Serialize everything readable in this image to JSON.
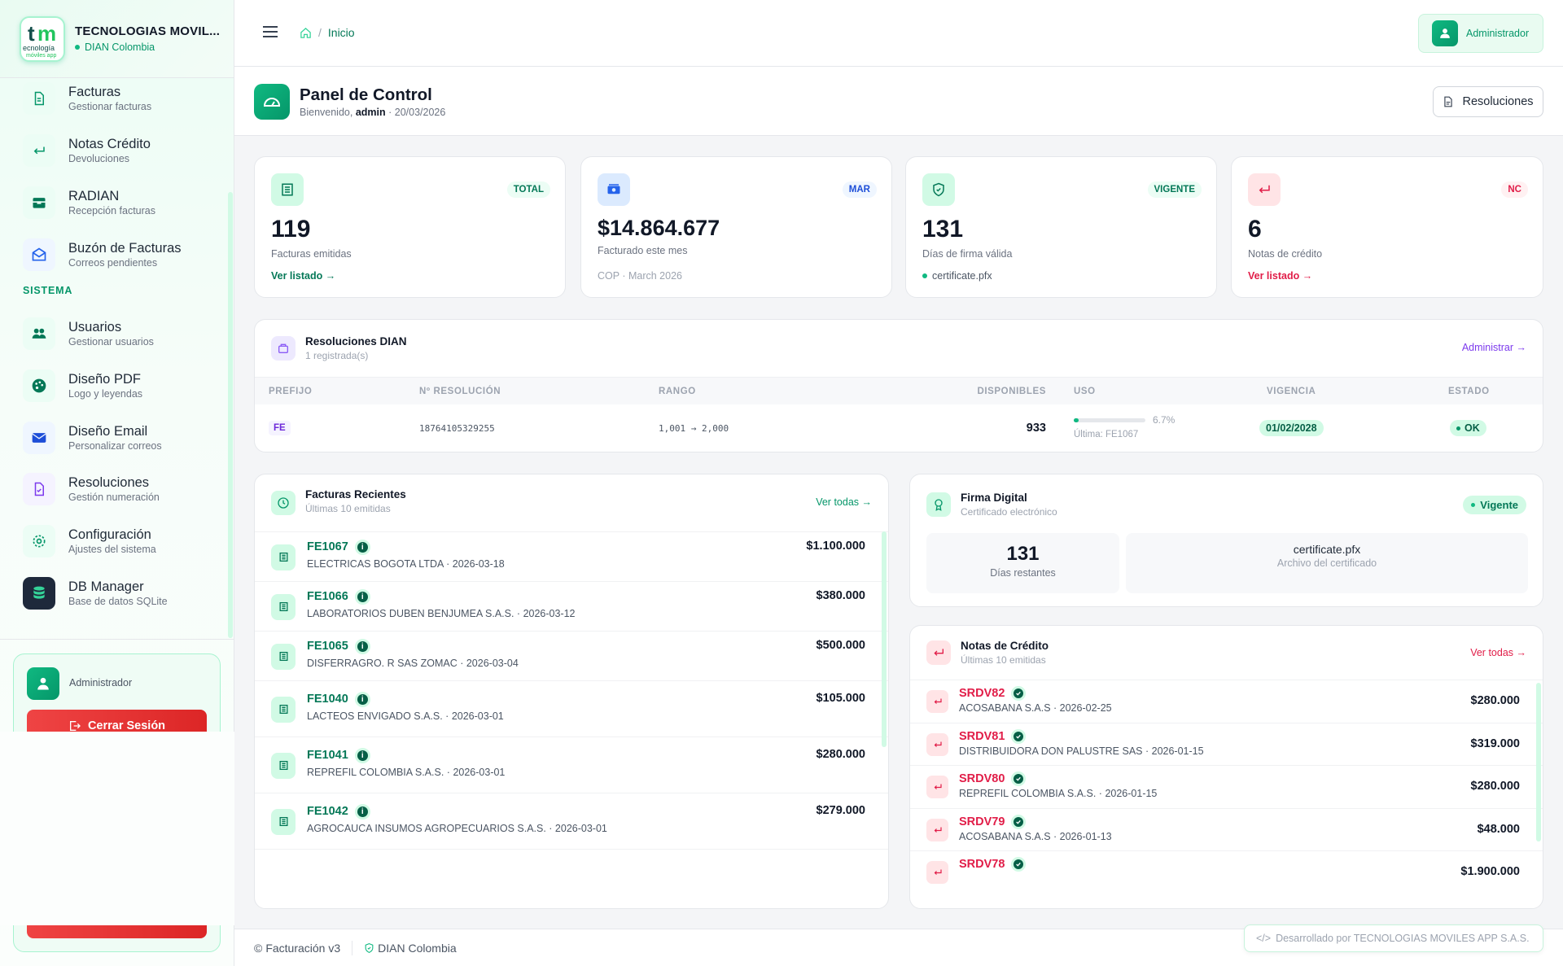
{
  "brand": {
    "name": "TECNOLOGIAS MOVIL...",
    "subtitle": "DIAN Colombia",
    "logo_text": "tecnología móviles app"
  },
  "sidebar": {
    "items": [
      {
        "title": "Facturas",
        "subtitle": "Gestionar facturas",
        "icon": "file-icon"
      },
      {
        "title": "Notas Crédito",
        "subtitle": "Devoluciones",
        "icon": "return-icon"
      },
      {
        "title": "RADIAN",
        "subtitle": "Recepción facturas",
        "icon": "inbox-icon"
      },
      {
        "title": "Buzón de Facturas",
        "subtitle": "Correos pendientes",
        "icon": "mail-icon"
      }
    ],
    "section_label": "SISTEMA",
    "system_items": [
      {
        "title": "Usuarios",
        "subtitle": "Gestionar usuarios",
        "icon": "users-icon"
      },
      {
        "title": "Diseño PDF",
        "subtitle": "Logo y leyendas",
        "icon": "palette-icon"
      },
      {
        "title": "Diseño Email",
        "subtitle": "Personalizar correos",
        "icon": "envelope-icon"
      },
      {
        "title": "Resoluciones",
        "subtitle": "Gestión numeración",
        "icon": "document-icon"
      },
      {
        "title": "Configuración",
        "subtitle": "Ajustes del sistema",
        "icon": "gear-icon"
      },
      {
        "title": "DB Manager",
        "subtitle": "Base de datos SQLite",
        "icon": "database-icon"
      }
    ],
    "user": {
      "role": "Administrador"
    },
    "logout_label": "Cerrar Sesión"
  },
  "topbar": {
    "breadcrumb": "Inicio",
    "user_label": "Administrador"
  },
  "page": {
    "title": "Panel de Control",
    "welcome": "Bienvenido,",
    "user": "admin",
    "date": "· 20/03/2026",
    "resoluciones_button": "Resoluciones"
  },
  "stats": [
    {
      "value": "119",
      "label": "Facturas emitidas",
      "badge": "TOTAL",
      "footer": "Ver listado →"
    },
    {
      "value": "$14.864.677",
      "label": "Facturado este mes",
      "badge": "MAR",
      "footer": "COP · March 2026"
    },
    {
      "value": "131",
      "label": "Días de firma válida",
      "badge": "VIGENTE",
      "footer": "certificate.pfx"
    },
    {
      "value": "6",
      "label": "Notas de crédito",
      "badge": "NC",
      "footer": "Ver listado →"
    }
  ],
  "resoluciones": {
    "title": "Resoluciones DIAN",
    "subtitle": "1 registrada(s)",
    "action": "Administrar →",
    "columns": [
      "PREFIJO",
      "Nº RESOLUCIÓN",
      "RANGO",
      "DISPONIBLES",
      "USO",
      "VIGENCIA",
      "ESTADO"
    ],
    "rows": [
      {
        "prefijo": "FE",
        "resolucion": "18764105329255",
        "rango": "1,001 → 2,000",
        "disponibles": "933",
        "uso_percent": 6.7,
        "uso_label": "6.7%",
        "ultima": "Última: FE1067",
        "vigencia": "01/02/2028",
        "estado": "OK"
      }
    ]
  },
  "facturas": {
    "title": "Facturas Recientes",
    "subtitle": "Últimas 10 emitidas",
    "action": "Ver todas →",
    "rows": [
      {
        "id": "FE1067",
        "detail": "ELECTRICAS BOGOTA LTDA · 2026-03-18",
        "amount": "$1.100.000"
      },
      {
        "id": "FE1066",
        "detail": "LABORATORIOS DUBEN BENJUMEA S.A.S. · 2026-03-12",
        "amount": "$380.000"
      },
      {
        "id": "FE1065",
        "detail": "DISFERRAGRO. R SAS ZOMAC · 2026-03-04",
        "amount": "$500.000"
      },
      {
        "id": "FE1040",
        "detail": "LACTEOS ENVIGADO S.A.S. · 2026-03-01",
        "amount": "$105.000"
      },
      {
        "id": "FE1041",
        "detail": "REPREFIL COLOMBIA S.A.S. · 2026-03-01",
        "amount": "$280.000"
      },
      {
        "id": "FE1042",
        "detail": "AGROCAUCA INSUMOS AGROPECUARIOS S.A.S. · 2026-03-01",
        "amount": "$279.000"
      }
    ]
  },
  "firma": {
    "title": "Firma Digital",
    "subtitle": "Certificado electrónico",
    "status": "Vigente",
    "days": "131",
    "days_label": "Días restantes",
    "file": "certificate.pfx",
    "file_label": "Archivo del certificado"
  },
  "notas": {
    "title": "Notas de Crédito",
    "subtitle": "Últimas 10 emitidas",
    "action": "Ver todas →",
    "rows": [
      {
        "id": "SRDV82",
        "detail": "ACOSABANA S.A.S · 2026-02-25",
        "amount": "$280.000"
      },
      {
        "id": "SRDV81",
        "detail": "DISTRIBUIDORA DON PALUSTRE SAS · 2026-01-15",
        "amount": "$319.000"
      },
      {
        "id": "SRDV80",
        "detail": "REPREFIL COLOMBIA S.A.S. · 2026-01-15",
        "amount": "$280.000"
      },
      {
        "id": "SRDV79",
        "detail": "ACOSABANA S.A.S · 2026-01-13",
        "amount": "$48.000"
      },
      {
        "id": "SRDV78",
        "detail": "",
        "amount": "$1.900.000"
      }
    ]
  },
  "footer": {
    "version": "Facturación v3",
    "dian": "DIAN Colombia",
    "developer": "Desarrollado por TECNOLOGIAS MOVILES APP S.A.S."
  },
  "colors": {
    "primary": "#10b981",
    "primary_dark": "#059669",
    "danger": "#e11d48",
    "info": "#2563eb",
    "purple": "#7c3aed"
  }
}
